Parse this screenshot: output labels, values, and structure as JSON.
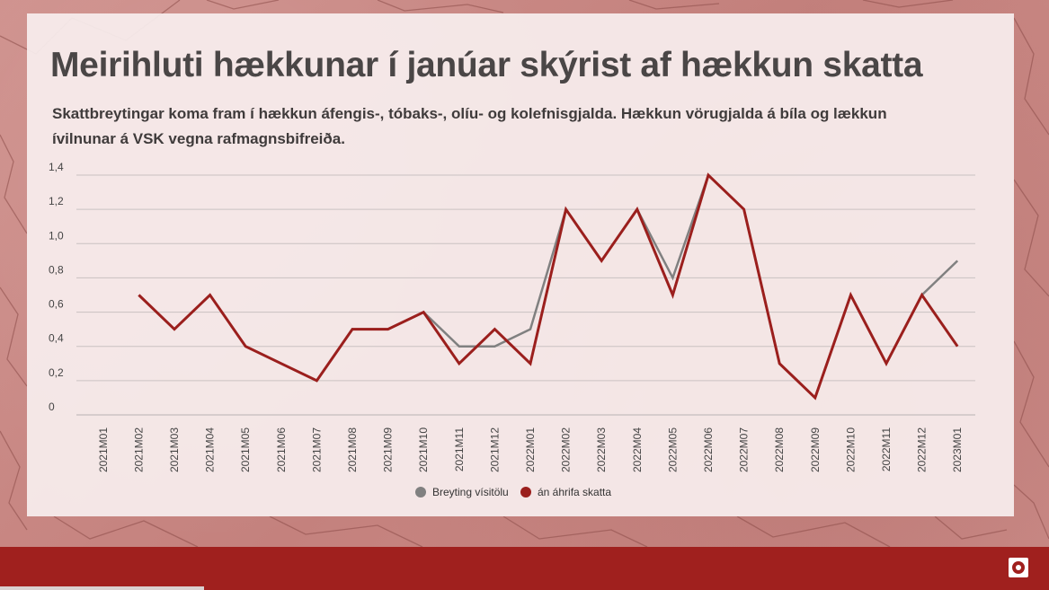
{
  "title": "Meirihluti hækkunar í janúar skýrist af hækkun skatta",
  "subtitle": "Skattbreytingar koma fram í hækkun áfengis-, tóbaks-, olíu- og kolefnisgjalda. Hækkun  vörugjalda á bíla og lækkun ívilnunar á VSK vegna rafmagnsbifreiða.",
  "chart_data": {
    "type": "line",
    "categories": [
      "2021M01",
      "2021M02",
      "2021M03",
      "2021M04",
      "2021M05",
      "2021M06",
      "2021M07",
      "2021M08",
      "2021M09",
      "2021M10",
      "2021M11",
      "2021M12",
      "2022M01",
      "2022M02",
      "2022M03",
      "2022M04",
      "2022M05",
      "2022M06",
      "2022M07",
      "2022M08",
      "2022M09",
      "2022M10",
      "2022M11",
      "2022M12",
      "2023M01"
    ],
    "series": [
      {
        "name": "Breyting vísitölu",
        "color": "#808080",
        "values": [
          null,
          0.7,
          0.5,
          0.7,
          0.4,
          0.3,
          0.2,
          0.5,
          0.5,
          0.6,
          0.4,
          0.4,
          0.5,
          1.2,
          0.9,
          1.2,
          0.8,
          1.4,
          1.2,
          0.3,
          0.1,
          0.7,
          0.3,
          0.7,
          0.9
        ]
      },
      {
        "name": "án áhrifa skatta",
        "color": "#9b1f1d",
        "values": [
          null,
          0.7,
          0.5,
          0.7,
          0.4,
          0.3,
          0.2,
          0.5,
          0.5,
          0.6,
          0.3,
          0.5,
          0.3,
          1.2,
          0.9,
          1.2,
          0.7,
          1.4,
          1.2,
          0.3,
          0.1,
          0.7,
          0.3,
          0.7,
          0.4
        ]
      }
    ],
    "yticks": [
      "0",
      "0,2",
      "0,4",
      "0,6",
      "0,8",
      "1,0",
      "1,2",
      "1,4"
    ],
    "ylim": [
      0,
      1.4
    ],
    "grid": true,
    "legend_position": "bottom-center"
  },
  "colors": {
    "accent": "#9b1f1d",
    "footer": "#a0201e",
    "gray_series": "#808080"
  },
  "footer": {
    "logo_icon": "seal-icon"
  }
}
